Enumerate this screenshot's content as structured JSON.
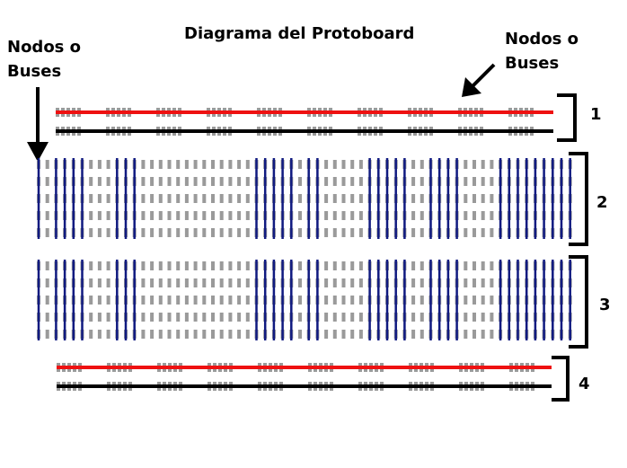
{
  "title": "Diagrama del Protoboard",
  "labels": {
    "left": {
      "line1": "Nodos o",
      "line2": "Buses"
    },
    "right": {
      "line1": "Nodos o",
      "line2": "Buses"
    }
  },
  "sections": [
    {
      "number": "1",
      "kind": "power-rail"
    },
    {
      "number": "2",
      "kind": "terminal-strip"
    },
    {
      "number": "3",
      "kind": "terminal-strip"
    },
    {
      "number": "4",
      "kind": "power-rail"
    }
  ],
  "colors": {
    "positive_bus": "#ee1111",
    "negative_bus": "#000000",
    "column_node": "#101a80",
    "hole": "#9a9a9a"
  },
  "icons": {
    "left_arrow": "arrow-down-icon",
    "right_arrow": "arrow-down-left-icon"
  }
}
